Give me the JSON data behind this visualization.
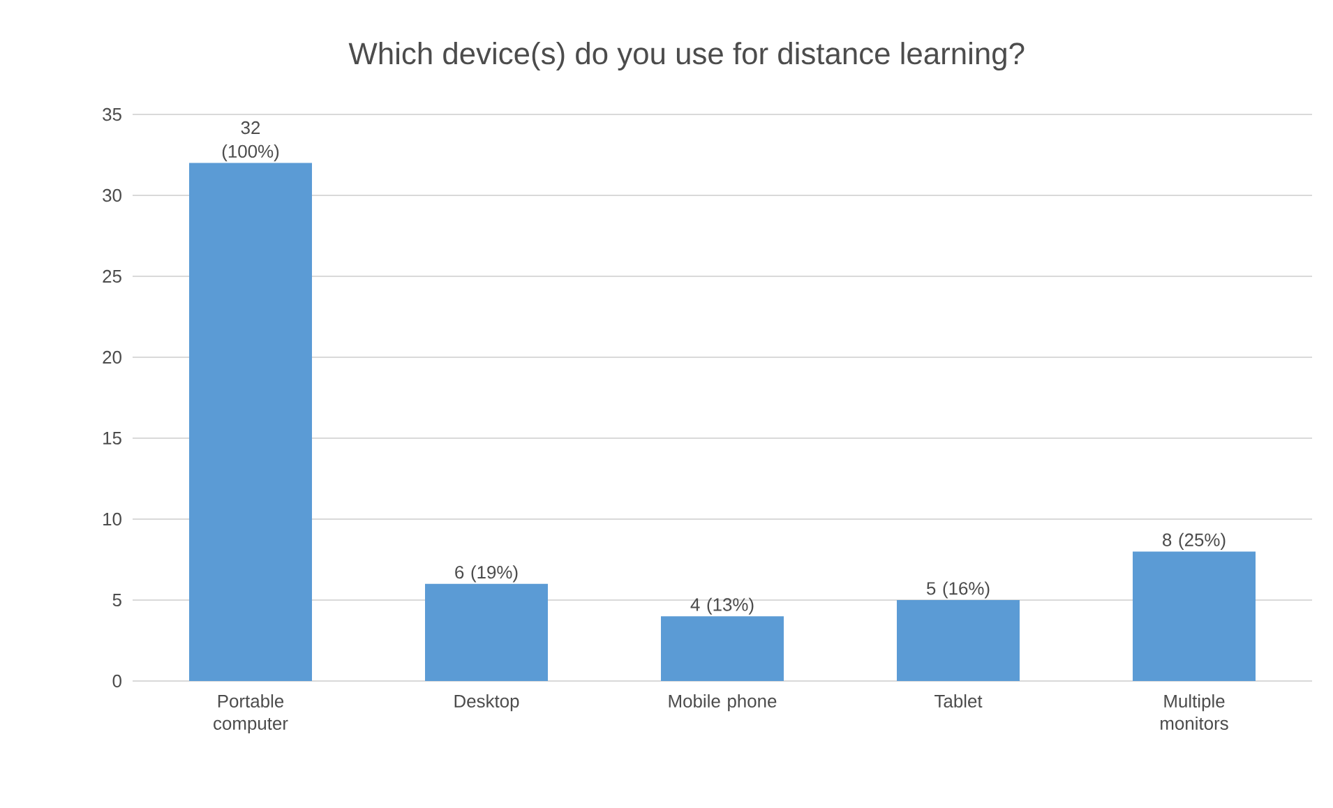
{
  "chart_data": {
    "type": "bar",
    "title": "Which device(s) do you use for distance learning?",
    "categories": [
      "Portable computer",
      "Desktop",
      "Mobile phone",
      "Tablet",
      "Multiple monitors"
    ],
    "values": [
      32,
      6,
      4,
      5,
      8
    ],
    "value_labels": [
      "32 (100%)",
      "6 (19%)",
      "4 (13%)",
      "5 (16%)",
      "8 (25%)"
    ],
    "color": "#5b9bd5",
    "ylim": [
      0,
      35
    ],
    "yticks": [
      0,
      5,
      10,
      15,
      20,
      25,
      30,
      35
    ],
    "grid": "y"
  }
}
